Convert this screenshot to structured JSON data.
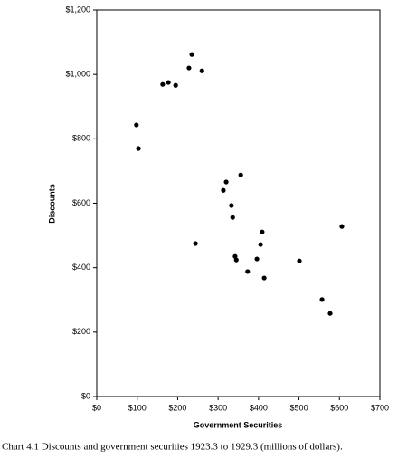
{
  "chart_data": {
    "type": "scatter",
    "caption": "Chart 4.1  Discounts and government securities 1923.3 to 1929.3 (millions of dollars).",
    "x_label": "Government Securities",
    "y_label": "Discounts",
    "color": "#000000",
    "xlim": [
      0,
      700
    ],
    "ylim": [
      0,
      1200
    ],
    "xticks": [
      {
        "value": 0,
        "label": "$0"
      },
      {
        "value": 100,
        "label": "$100"
      },
      {
        "value": 200,
        "label": "$200"
      },
      {
        "value": 300,
        "label": "$300"
      },
      {
        "value": 400,
        "label": "$400"
      },
      {
        "value": 500,
        "label": "$500"
      },
      {
        "value": 600,
        "label": "$600"
      },
      {
        "value": 700,
        "label": "$700"
      }
    ],
    "yticks": [
      {
        "value": 0,
        "label": "$0"
      },
      {
        "value": 200,
        "label": "$200"
      },
      {
        "value": 400,
        "label": "$400"
      },
      {
        "value": 600,
        "label": "$600"
      },
      {
        "value": 800,
        "label": "$800"
      },
      {
        "value": 1000,
        "label": "$1,000"
      },
      {
        "value": 1200,
        "label": "$1,200"
      }
    ],
    "x": [
      98,
      103,
      163,
      177,
      195,
      228,
      235,
      260,
      356,
      320,
      313,
      333,
      336,
      244,
      409,
      405,
      606,
      342,
      345,
      396,
      373,
      414,
      501,
      557,
      577
    ],
    "y": [
      843,
      770,
      969,
      975,
      966,
      1020,
      1062,
      1011,
      688,
      666,
      640,
      593,
      556,
      475,
      511,
      472,
      528,
      435,
      424,
      427,
      388,
      368,
      421,
      301,
      258
    ]
  }
}
